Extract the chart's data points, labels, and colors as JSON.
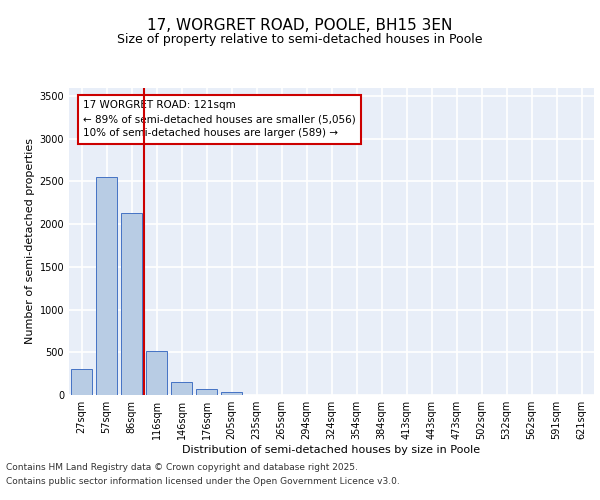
{
  "title": "17, WORGRET ROAD, POOLE, BH15 3EN",
  "subtitle": "Size of property relative to semi-detached houses in Poole",
  "xlabel": "Distribution of semi-detached houses by size in Poole",
  "ylabel": "Number of semi-detached properties",
  "categories": [
    "27sqm",
    "57sqm",
    "86sqm",
    "116sqm",
    "146sqm",
    "176sqm",
    "205sqm",
    "235sqm",
    "265sqm",
    "294sqm",
    "324sqm",
    "354sqm",
    "384sqm",
    "413sqm",
    "443sqm",
    "473sqm",
    "502sqm",
    "532sqm",
    "562sqm",
    "591sqm",
    "621sqm"
  ],
  "values": [
    310,
    2550,
    2130,
    520,
    155,
    75,
    30,
    5,
    2,
    1,
    0,
    0,
    0,
    0,
    0,
    0,
    0,
    0,
    0,
    0,
    0
  ],
  "bar_color": "#b8cce4",
  "bar_edge_color": "#4472c4",
  "highlight_line_color": "#cc0000",
  "annotation_box_text": "17 WORGRET ROAD: 121sqm\n← 89% of semi-detached houses are smaller (5,056)\n10% of semi-detached houses are larger (589) →",
  "annotation_box_color": "#cc0000",
  "ylim": [
    0,
    3600
  ],
  "yticks": [
    0,
    500,
    1000,
    1500,
    2000,
    2500,
    3000,
    3500
  ],
  "background_color": "#e8eef8",
  "grid_color": "#ffffff",
  "footer_line1": "Contains HM Land Registry data © Crown copyright and database right 2025.",
  "footer_line2": "Contains public sector information licensed under the Open Government Licence v3.0.",
  "title_fontsize": 11,
  "subtitle_fontsize": 9,
  "axis_label_fontsize": 8,
  "tick_fontsize": 7,
  "annotation_fontsize": 7.5,
  "footer_fontsize": 6.5
}
